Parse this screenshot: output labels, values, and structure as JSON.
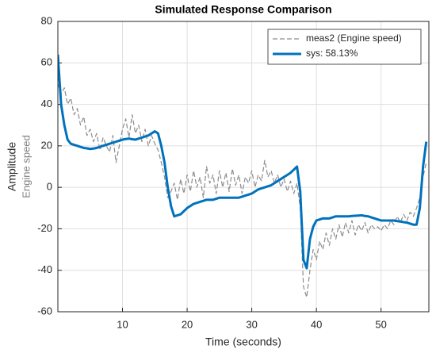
{
  "chart_data": {
    "type": "line",
    "title": "Simulated Response Comparison",
    "xlabel": "Time (seconds)",
    "ylabel": "Amplitude",
    "y_sublabel": "Engine speed",
    "xlim": [
      0,
      57.4
    ],
    "ylim": [
      -60,
      80
    ],
    "xticks": [
      10,
      20,
      30,
      40,
      50
    ],
    "yticks": [
      -60,
      -40,
      -20,
      0,
      20,
      40,
      60,
      80
    ],
    "grid": true,
    "legend": "upper right",
    "x": [
      0,
      0.5,
      1,
      1.5,
      2,
      2.5,
      3,
      3.5,
      4,
      4.5,
      5,
      5.5,
      6,
      6.5,
      7,
      7.5,
      8,
      8.5,
      9,
      9.5,
      10,
      10.5,
      11,
      11.5,
      12,
      12.5,
      13,
      13.5,
      14,
      14.5,
      15,
      15.5,
      16,
      16.5,
      17,
      17.5,
      18,
      18.5,
      19,
      19.5,
      20,
      20.5,
      21,
      21.5,
      22,
      22.5,
      23,
      23.5,
      24,
      24.5,
      25,
      25.5,
      26,
      26.5,
      27,
      27.5,
      28,
      28.5,
      29,
      29.5,
      30,
      30.5,
      31,
      31.5,
      32,
      32.5,
      33,
      33.5,
      34,
      34.5,
      35,
      35.5,
      36,
      36.5,
      37,
      37.5,
      38,
      38.5,
      39,
      39.5,
      40,
      40.5,
      41,
      41.5,
      42,
      42.5,
      43,
      43.5,
      44,
      44.5,
      45,
      45.5,
      46,
      46.5,
      47,
      47.5,
      48,
      48.5,
      49,
      49.5,
      50,
      50.5,
      51,
      51.5,
      52,
      52.5,
      53,
      53.5,
      54,
      54.5,
      55,
      55.5,
      56,
      56.5,
      57
    ],
    "series": [
      {
        "name": "meas2 (Engine speed)",
        "color": "#8c8c8c",
        "dashed": true,
        "values": [
          50,
          45,
          48,
          40,
          43,
          35,
          38,
          30,
          34,
          25,
          28,
          22,
          26,
          18,
          24,
          20,
          17,
          25,
          12,
          20,
          28,
          33,
          24,
          35,
          26,
          30,
          22,
          28,
          20,
          25,
          21,
          18,
          12,
          5,
          -5,
          -2,
          2,
          -6,
          4,
          -3,
          6,
          -2,
          8,
          0,
          5,
          -5,
          10,
          2,
          6,
          -3,
          8,
          0,
          7,
          -2,
          9,
          1,
          6,
          -3,
          5,
          2,
          8,
          0,
          6,
          3,
          13,
          5,
          8,
          2,
          6,
          0,
          4,
          -2,
          3,
          -3,
          2,
          -10,
          -48,
          -53,
          -40,
          -30,
          -35,
          -26,
          -30,
          -22,
          -28,
          -20,
          -25,
          -18,
          -24,
          -17,
          -22,
          -16,
          -23,
          -18,
          -21,
          -17,
          -22,
          -18,
          -20,
          -19,
          -21,
          -18,
          -20,
          -16,
          -18,
          -14,
          -17,
          -13,
          -16,
          -12,
          -14,
          -10,
          -5,
          5,
          12
        ]
      },
      {
        "name": "sys: 58.13%",
        "color": "#0072bd",
        "dashed": false,
        "values": [
          64,
          40,
          30,
          23,
          21,
          20.5,
          20,
          19.5,
          19,
          18.8,
          18.5,
          18.7,
          19,
          19.5,
          20,
          20.5,
          21,
          21.5,
          22,
          22.5,
          23,
          23.3,
          23.5,
          23.2,
          23,
          23.5,
          24,
          24.5,
          25,
          26,
          27,
          26,
          20,
          12,
          0,
          -9,
          -14,
          -13.5,
          -13,
          -11.5,
          -10,
          -9,
          -8,
          -7.5,
          -7,
          -6.5,
          -6,
          -6,
          -6,
          -5.5,
          -5,
          -5,
          -5,
          -5,
          -5,
          -5,
          -5,
          -4.5,
          -4,
          -3.5,
          -3,
          -2,
          -1,
          -0.5,
          0,
          0.5,
          1,
          2,
          3,
          4,
          5,
          6,
          7,
          8.5,
          10,
          -2,
          -35,
          -39,
          -25,
          -19,
          -16,
          -15.5,
          -15,
          -15,
          -15,
          -14.5,
          -14,
          -14,
          -14,
          -14,
          -14,
          -13.8,
          -13.7,
          -13.6,
          -13.5,
          -13.8,
          -14,
          -14.5,
          -15,
          -15.5,
          -16,
          -16,
          -16,
          -16,
          -16,
          -16.3,
          -16.5,
          -16.8,
          -17,
          -17.5,
          -18,
          -18,
          -10,
          10,
          22
        ]
      }
    ]
  }
}
